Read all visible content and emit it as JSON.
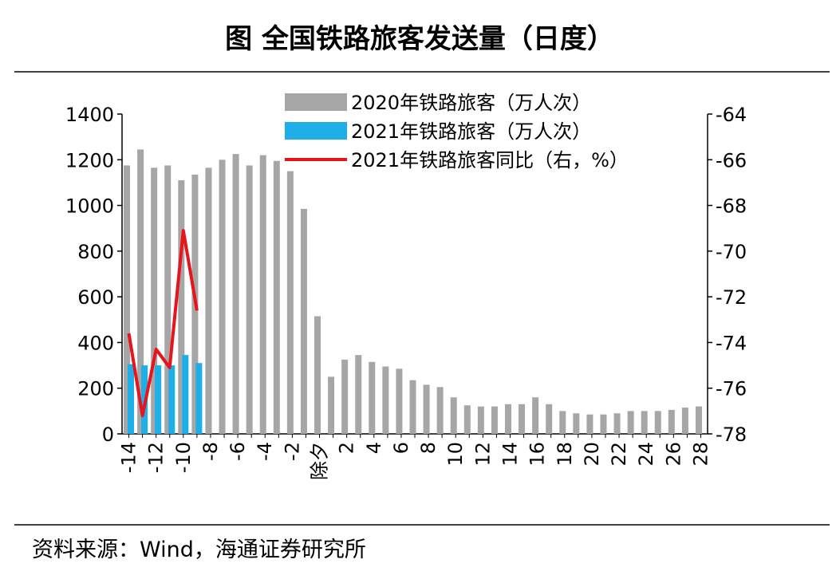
{
  "title": "图  全国铁路旅客发送量（日度）",
  "chart_data": {
    "type": "bar",
    "categories": [
      "-14",
      null,
      "-12",
      null,
      "-10",
      null,
      "-8",
      null,
      "-6",
      null,
      "-4",
      null,
      "-2",
      null,
      "除夕",
      null,
      "2",
      null,
      "4",
      null,
      "6",
      null,
      "8",
      null,
      "10",
      null,
      "12",
      null,
      "14",
      null,
      "16",
      null,
      "18",
      null,
      "20",
      null,
      "22",
      null,
      "24",
      null,
      "26",
      null,
      "28"
    ],
    "series": [
      {
        "name": "2020年铁路旅客（万人次）",
        "color": "#a6a6a6",
        "type": "bar",
        "values": [
          1175,
          1245,
          1165,
          1175,
          1110,
          1135,
          1165,
          1200,
          1225,
          1175,
          1220,
          1195,
          1150,
          985,
          515,
          250,
          325,
          345,
          315,
          295,
          285,
          235,
          215,
          205,
          160,
          125,
          120,
          120,
          130,
          130,
          160,
          130,
          100,
          90,
          85,
          85,
          90,
          100,
          100,
          100,
          105,
          115,
          120
        ]
      },
      {
        "name": "2021年铁路旅客（万人次）",
        "color": "#1eaee8",
        "type": "bar",
        "values": [
          305,
          300,
          300,
          300,
          345,
          310,
          null,
          null,
          null,
          null,
          null,
          null,
          null,
          null,
          null,
          null,
          null,
          null,
          null,
          null,
          null,
          null,
          null,
          null,
          null,
          null,
          null,
          null,
          null,
          null,
          null,
          null,
          null,
          null,
          null,
          null,
          null,
          null,
          null,
          null,
          null,
          null,
          null
        ]
      },
      {
        "name": "2021年铁路旅客同比（右，%）",
        "color": "#e8141b",
        "type": "line",
        "axis": "y2",
        "values": [
          -73.6,
          -77.2,
          -74.3,
          -75.1,
          -69.1,
          -72.6,
          null,
          null,
          null,
          null,
          null,
          null,
          null,
          null,
          null,
          null,
          null,
          null,
          null,
          null,
          null,
          null,
          null,
          null,
          null,
          null,
          null,
          null,
          null,
          null,
          null,
          null,
          null,
          null,
          null,
          null,
          null,
          null,
          null,
          null,
          null,
          null,
          null
        ]
      }
    ],
    "ylim": [
      0,
      1400
    ],
    "yticks": [
      0,
      200,
      400,
      600,
      800,
      1000,
      1200,
      1400
    ],
    "y2lim": [
      -78,
      -64
    ],
    "y2ticks": [
      -78,
      -76,
      -74,
      -72,
      -70,
      -68,
      -66,
      -64
    ]
  },
  "source": "资料来源：Wind，海通证券研究所"
}
